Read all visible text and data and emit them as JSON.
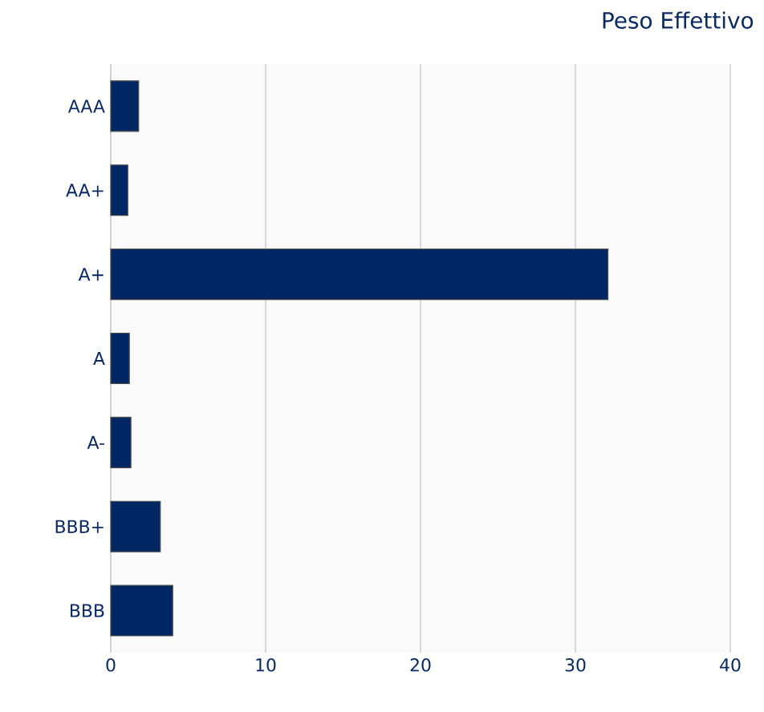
{
  "chart_data": {
    "type": "bar",
    "orientation": "horizontal",
    "title": "Peso Effettivo",
    "categories": [
      "AAA",
      "AA+",
      "A+",
      "A",
      "A-",
      "BBB+",
      "BBB"
    ],
    "values": [
      1.8,
      1.1,
      32.1,
      1.2,
      1.3,
      3.2,
      4.0
    ],
    "color": "#002663",
    "xlim": [
      0,
      40
    ],
    "xticks": [
      0,
      10,
      20,
      30,
      40
    ],
    "grid": "x"
  }
}
